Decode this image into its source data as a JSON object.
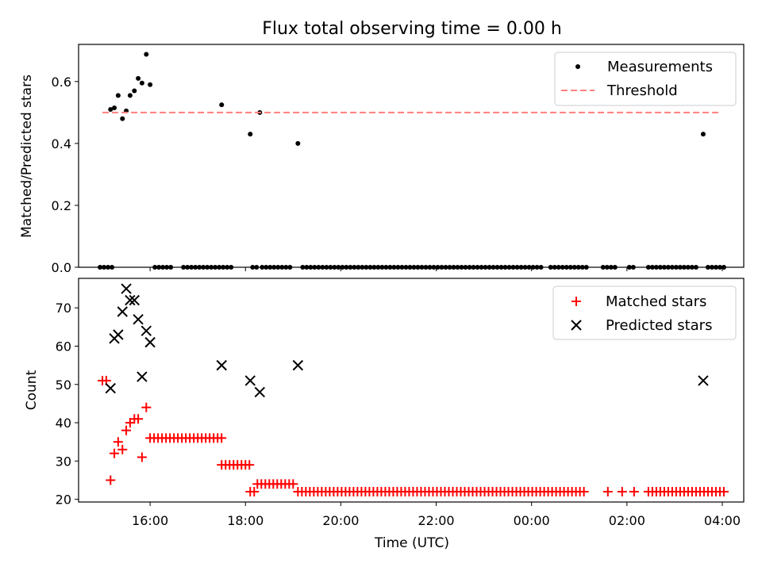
{
  "title": "Flux total observing time = 0.00 h",
  "xlabel": "Time (UTC)",
  "x_tick_labels": [
    "16:00",
    "18:00",
    "20:00",
    "22:00",
    "00:00",
    "02:00",
    "04:00"
  ],
  "chart_data": [
    {
      "type": "scatter",
      "ylabel": "Matched/Predicted stars",
      "x_unit": "hours since 15:00 UTC",
      "xlim": [
        14.5,
        28.45
      ],
      "ylim": [
        0.0,
        0.72
      ],
      "yticks": [
        0.0,
        0.2,
        0.4,
        0.6
      ],
      "ytick_labels": [
        "0.0",
        "0.2",
        "0.4",
        "0.6"
      ],
      "legend": "top-right",
      "series": [
        {
          "name": "Measurements",
          "marker": "dot",
          "color": "#000000",
          "points": [
            [
              15.17,
              0.51
            ],
            [
              15.25,
              0.515
            ],
            [
              15.33,
              0.555
            ],
            [
              15.42,
              0.48
            ],
            [
              15.5,
              0.505
            ],
            [
              15.58,
              0.555
            ],
            [
              15.67,
              0.57
            ],
            [
              15.75,
              0.61
            ],
            [
              15.83,
              0.595
            ],
            [
              15.92,
              0.688
            ],
            [
              16.0,
              0.59
            ],
            [
              17.5,
              0.525
            ],
            [
              18.1,
              0.43
            ],
            [
              18.3,
              0.5
            ],
            [
              19.1,
              0.4
            ],
            [
              27.6,
              0.43
            ]
          ],
          "zero_points": {
            "ranges": [
              [
                14.95,
                15.2
              ],
              [
                16.1,
                16.5
              ],
              [
                16.7,
                17.7
              ],
              [
                18.15,
                18.25
              ],
              [
                18.35,
                19.0
              ],
              [
                19.2,
                24.2
              ],
              [
                24.4,
                25.15
              ],
              [
                25.5,
                25.8
              ],
              [
                26.05,
                26.15
              ],
              [
                26.45,
                27.5
              ],
              [
                27.7,
                28.05
              ]
            ],
            "step": 0.0833,
            "value": 0.0
          }
        },
        {
          "name": "Threshold",
          "style": "dashed",
          "color": "#ff7f7f",
          "x": [
            15.0,
            27.95
          ],
          "y": [
            0.5,
            0.5
          ]
        }
      ]
    },
    {
      "type": "scatter",
      "ylabel": "Count",
      "xlim": [
        14.5,
        28.45
      ],
      "ylim": [
        19.3,
        77.7
      ],
      "yticks": [
        20,
        30,
        40,
        50,
        60,
        70
      ],
      "ytick_labels": [
        "20",
        "30",
        "40",
        "50",
        "60",
        "70"
      ],
      "legend": "top-right",
      "series": [
        {
          "name": "Matched stars",
          "marker": "plus",
          "color": "#ff0000",
          "points": [
            [
              15.0,
              51
            ],
            [
              15.08,
              51
            ],
            [
              15.17,
              25
            ],
            [
              15.25,
              32
            ],
            [
              15.33,
              35
            ],
            [
              15.42,
              33
            ],
            [
              15.5,
              38
            ],
            [
              15.58,
              40
            ],
            [
              15.67,
              41
            ],
            [
              15.75,
              41
            ],
            [
              15.83,
              31
            ],
            [
              15.92,
              44
            ],
            [
              25.6,
              22
            ],
            [
              25.9,
              22
            ],
            [
              26.15,
              22
            ]
          ],
          "constant_runs": [
            {
              "range": [
                16.0,
                17.5
              ],
              "value": 36
            },
            {
              "range": [
                17.5,
                18.1
              ],
              "value": 29
            },
            {
              "range": [
                18.1,
                18.2
              ],
              "value": 22
            },
            {
              "range": [
                18.25,
                19.0
              ],
              "value": 24
            },
            {
              "range": [
                19.1,
                25.15
              ],
              "value": 22
            },
            {
              "range": [
                26.45,
                28.05
              ],
              "value": 22
            }
          ],
          "run_step": 0.0833
        },
        {
          "name": "Predicted stars",
          "marker": "x",
          "color": "#000000",
          "points": [
            [
              15.17,
              49
            ],
            [
              15.25,
              62
            ],
            [
              15.33,
              63
            ],
            [
              15.42,
              69
            ],
            [
              15.5,
              75
            ],
            [
              15.58,
              72
            ],
            [
              15.67,
              72
            ],
            [
              15.75,
              67
            ],
            [
              15.83,
              52
            ],
            [
              15.92,
              64
            ],
            [
              16.0,
              61
            ],
            [
              17.5,
              55
            ],
            [
              18.1,
              51
            ],
            [
              18.3,
              48
            ],
            [
              19.1,
              55
            ],
            [
              27.6,
              51
            ]
          ]
        }
      ]
    }
  ]
}
